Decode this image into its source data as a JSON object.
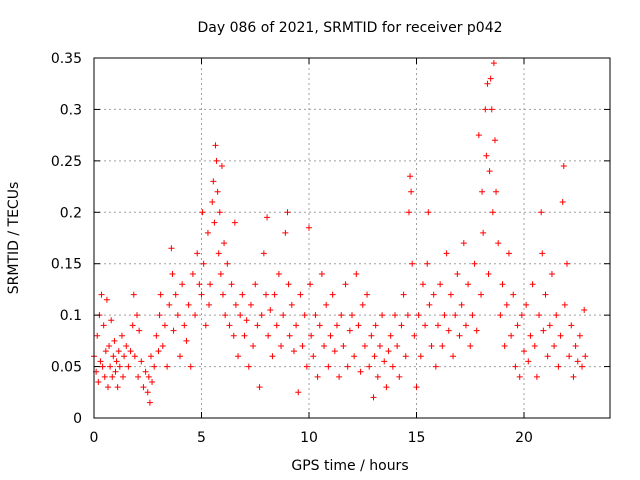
{
  "chart_data": {
    "type": "scatter",
    "title": "Day 086 of 2021, SRMTID for receiver p042",
    "xlabel": "GPS time / hours",
    "ylabel": "SRMTID / TECUs",
    "xlim": [
      0,
      24
    ],
    "ylim": [
      0,
      0.35
    ],
    "xticks": [
      0,
      5,
      10,
      15,
      20
    ],
    "xtick_labels": [
      "0",
      "5",
      "10",
      "15",
      "20"
    ],
    "yticks": [
      0,
      0.05,
      0.1,
      0.15,
      0.2,
      0.25,
      0.3,
      0.35
    ],
    "ytick_labels": [
      "0",
      "0.05",
      "0.1",
      "0.15",
      "0.2",
      "0.25",
      "0.3",
      "0.35"
    ],
    "grid": true,
    "marker": "+",
    "marker_color": "#ff0000",
    "axis_color": "#000000",
    "grid_color": "#a0a0a0",
    "series": [
      {
        "name": "SRMTID",
        "points": [
          [
            0.0,
            0.06
          ],
          [
            0.1,
            0.045
          ],
          [
            0.15,
            0.08
          ],
          [
            0.2,
            0.035
          ],
          [
            0.25,
            0.1
          ],
          [
            0.3,
            0.055
          ],
          [
            0.35,
            0.12
          ],
          [
            0.4,
            0.05
          ],
          [
            0.45,
            0.09
          ],
          [
            0.5,
            0.04
          ],
          [
            0.55,
            0.065
          ],
          [
            0.6,
            0.115
          ],
          [
            0.65,
            0.03
          ],
          [
            0.7,
            0.07
          ],
          [
            0.75,
            0.05
          ],
          [
            0.8,
            0.095
          ],
          [
            0.85,
            0.04
          ],
          [
            0.9,
            0.06
          ],
          [
            0.95,
            0.075
          ],
          [
            1.0,
            0.045
          ],
          [
            1.05,
            0.055
          ],
          [
            1.1,
            0.03
          ],
          [
            1.15,
            0.065
          ],
          [
            1.2,
            0.05
          ],
          [
            1.3,
            0.08
          ],
          [
            1.35,
            0.04
          ],
          [
            1.4,
            0.06
          ],
          [
            1.5,
            0.07
          ],
          [
            1.6,
            0.05
          ],
          [
            1.7,
            0.065
          ],
          [
            1.8,
            0.09
          ],
          [
            1.85,
            0.12
          ],
          [
            1.9,
            0.06
          ],
          [
            2.0,
            0.1
          ],
          [
            2.05,
            0.04
          ],
          [
            2.1,
            0.085
          ],
          [
            2.2,
            0.055
          ],
          [
            2.3,
            0.03
          ],
          [
            2.4,
            0.045
          ],
          [
            2.5,
            0.025
          ],
          [
            2.55,
            0.04
          ],
          [
            2.6,
            0.015
          ],
          [
            2.65,
            0.06
          ],
          [
            2.7,
            0.035
          ],
          [
            2.8,
            0.05
          ],
          [
            2.9,
            0.08
          ],
          [
            3.0,
            0.065
          ],
          [
            3.05,
            0.1
          ],
          [
            3.1,
            0.12
          ],
          [
            3.2,
            0.07
          ],
          [
            3.3,
            0.09
          ],
          [
            3.4,
            0.05
          ],
          [
            3.5,
            0.11
          ],
          [
            3.6,
            0.165
          ],
          [
            3.65,
            0.14
          ],
          [
            3.7,
            0.085
          ],
          [
            3.8,
            0.12
          ],
          [
            3.9,
            0.1
          ],
          [
            4.0,
            0.06
          ],
          [
            4.1,
            0.13
          ],
          [
            4.2,
            0.09
          ],
          [
            4.3,
            0.075
          ],
          [
            4.4,
            0.11
          ],
          [
            4.5,
            0.05
          ],
          [
            4.6,
            0.14
          ],
          [
            4.7,
            0.1
          ],
          [
            4.8,
            0.16
          ],
          [
            4.9,
            0.13
          ],
          [
            5.0,
            0.12
          ],
          [
            5.05,
            0.2
          ],
          [
            5.1,
            0.15
          ],
          [
            5.2,
            0.09
          ],
          [
            5.3,
            0.18
          ],
          [
            5.35,
            0.11
          ],
          [
            5.4,
            0.13
          ],
          [
            5.5,
            0.21
          ],
          [
            5.55,
            0.23
          ],
          [
            5.6,
            0.19
          ],
          [
            5.65,
            0.265
          ],
          [
            5.7,
            0.25
          ],
          [
            5.75,
            0.22
          ],
          [
            5.8,
            0.16
          ],
          [
            5.85,
            0.2
          ],
          [
            5.9,
            0.14
          ],
          [
            5.95,
            0.245
          ],
          [
            6.0,
            0.12
          ],
          [
            6.05,
            0.17
          ],
          [
            6.1,
            0.1
          ],
          [
            6.2,
            0.15
          ],
          [
            6.3,
            0.09
          ],
          [
            6.4,
            0.13
          ],
          [
            6.5,
            0.08
          ],
          [
            6.55,
            0.19
          ],
          [
            6.6,
            0.11
          ],
          [
            6.7,
            0.06
          ],
          [
            6.8,
            0.1
          ],
          [
            6.9,
            0.12
          ],
          [
            7.0,
            0.08
          ],
          [
            7.1,
            0.095
          ],
          [
            7.2,
            0.05
          ],
          [
            7.3,
            0.11
          ],
          [
            7.4,
            0.07
          ],
          [
            7.5,
            0.13
          ],
          [
            7.6,
            0.09
          ],
          [
            7.7,
            0.03
          ],
          [
            7.8,
            0.1
          ],
          [
            7.9,
            0.16
          ],
          [
            8.0,
            0.12
          ],
          [
            8.05,
            0.195
          ],
          [
            8.1,
            0.08
          ],
          [
            8.2,
            0.105
          ],
          [
            8.3,
            0.06
          ],
          [
            8.4,
            0.12
          ],
          [
            8.5,
            0.09
          ],
          [
            8.6,
            0.14
          ],
          [
            8.7,
            0.07
          ],
          [
            8.8,
            0.1
          ],
          [
            8.9,
            0.18
          ],
          [
            9.0,
            0.2
          ],
          [
            9.05,
            0.13
          ],
          [
            9.1,
            0.08
          ],
          [
            9.2,
            0.11
          ],
          [
            9.3,
            0.065
          ],
          [
            9.4,
            0.09
          ],
          [
            9.5,
            0.025
          ],
          [
            9.6,
            0.12
          ],
          [
            9.7,
            0.07
          ],
          [
            9.8,
            0.1
          ],
          [
            9.9,
            0.05
          ],
          [
            10.0,
            0.185
          ],
          [
            10.05,
            0.13
          ],
          [
            10.1,
            0.08
          ],
          [
            10.2,
            0.06
          ],
          [
            10.3,
            0.1
          ],
          [
            10.4,
            0.04
          ],
          [
            10.5,
            0.09
          ],
          [
            10.6,
            0.14
          ],
          [
            10.7,
            0.07
          ],
          [
            10.8,
            0.11
          ],
          [
            10.9,
            0.05
          ],
          [
            11.0,
            0.08
          ],
          [
            11.1,
            0.12
          ],
          [
            11.2,
            0.065
          ],
          [
            11.3,
            0.09
          ],
          [
            11.4,
            0.04
          ],
          [
            11.5,
            0.1
          ],
          [
            11.6,
            0.07
          ],
          [
            11.7,
            0.13
          ],
          [
            11.8,
            0.05
          ],
          [
            11.9,
            0.085
          ],
          [
            12.0,
            0.1
          ],
          [
            12.1,
            0.06
          ],
          [
            12.2,
            0.14
          ],
          [
            12.3,
            0.09
          ],
          [
            12.4,
            0.045
          ],
          [
            12.5,
            0.11
          ],
          [
            12.6,
            0.07
          ],
          [
            12.7,
            0.12
          ],
          [
            12.8,
            0.05
          ],
          [
            12.9,
            0.08
          ],
          [
            13.0,
            0.02
          ],
          [
            13.05,
            0.06
          ],
          [
            13.1,
            0.09
          ],
          [
            13.2,
            0.04
          ],
          [
            13.3,
            0.07
          ],
          [
            13.4,
            0.1
          ],
          [
            13.5,
            0.055
          ],
          [
            13.6,
            0.03
          ],
          [
            13.7,
            0.065
          ],
          [
            13.8,
            0.08
          ],
          [
            13.9,
            0.05
          ],
          [
            14.0,
            0.1
          ],
          [
            14.1,
            0.07
          ],
          [
            14.2,
            0.04
          ],
          [
            14.3,
            0.09
          ],
          [
            14.4,
            0.12
          ],
          [
            14.5,
            0.06
          ],
          [
            14.6,
            0.1
          ],
          [
            14.65,
            0.2
          ],
          [
            14.7,
            0.235
          ],
          [
            14.75,
            0.22
          ],
          [
            14.8,
            0.15
          ],
          [
            14.9,
            0.08
          ],
          [
            15.0,
            0.03
          ],
          [
            15.1,
            0.1
          ],
          [
            15.2,
            0.06
          ],
          [
            15.3,
            0.13
          ],
          [
            15.4,
            0.09
          ],
          [
            15.5,
            0.15
          ],
          [
            15.55,
            0.2
          ],
          [
            15.6,
            0.11
          ],
          [
            15.7,
            0.07
          ],
          [
            15.8,
            0.12
          ],
          [
            15.9,
            0.05
          ],
          [
            16.0,
            0.09
          ],
          [
            16.1,
            0.13
          ],
          [
            16.2,
            0.07
          ],
          [
            16.3,
            0.1
          ],
          [
            16.4,
            0.16
          ],
          [
            16.5,
            0.085
          ],
          [
            16.6,
            0.12
          ],
          [
            16.7,
            0.06
          ],
          [
            16.8,
            0.1
          ],
          [
            16.9,
            0.14
          ],
          [
            17.0,
            0.08
          ],
          [
            17.1,
            0.11
          ],
          [
            17.2,
            0.17
          ],
          [
            17.3,
            0.09
          ],
          [
            17.4,
            0.13
          ],
          [
            17.5,
            0.07
          ],
          [
            17.6,
            0.1
          ],
          [
            17.7,
            0.15
          ],
          [
            17.8,
            0.085
          ],
          [
            17.9,
            0.275
          ],
          [
            18.0,
            0.12
          ],
          [
            18.05,
            0.22
          ],
          [
            18.1,
            0.18
          ],
          [
            18.2,
            0.3
          ],
          [
            18.25,
            0.255
          ],
          [
            18.3,
            0.325
          ],
          [
            18.35,
            0.14
          ],
          [
            18.4,
            0.24
          ],
          [
            18.45,
            0.33
          ],
          [
            18.5,
            0.3
          ],
          [
            18.55,
            0.2
          ],
          [
            18.6,
            0.345
          ],
          [
            18.65,
            0.27
          ],
          [
            18.7,
            0.22
          ],
          [
            18.8,
            0.17
          ],
          [
            18.9,
            0.1
          ],
          [
            19.0,
            0.13
          ],
          [
            19.1,
            0.07
          ],
          [
            19.2,
            0.11
          ],
          [
            19.3,
            0.16
          ],
          [
            19.4,
            0.08
          ],
          [
            19.5,
            0.12
          ],
          [
            19.6,
            0.05
          ],
          [
            19.7,
            0.09
          ],
          [
            19.8,
            0.04
          ],
          [
            19.9,
            0.1
          ],
          [
            20.0,
            0.065
          ],
          [
            20.1,
            0.11
          ],
          [
            20.2,
            0.055
          ],
          [
            20.3,
            0.08
          ],
          [
            20.4,
            0.13
          ],
          [
            20.5,
            0.07
          ],
          [
            20.6,
            0.04
          ],
          [
            20.7,
            0.1
          ],
          [
            20.8,
            0.2
          ],
          [
            20.85,
            0.16
          ],
          [
            20.9,
            0.085
          ],
          [
            21.0,
            0.12
          ],
          [
            21.1,
            0.06
          ],
          [
            21.2,
            0.09
          ],
          [
            21.3,
            0.14
          ],
          [
            21.4,
            0.07
          ],
          [
            21.5,
            0.1
          ],
          [
            21.6,
            0.05
          ],
          [
            21.7,
            0.08
          ],
          [
            21.8,
            0.21
          ],
          [
            21.85,
            0.245
          ],
          [
            21.9,
            0.11
          ],
          [
            22.0,
            0.15
          ],
          [
            22.1,
            0.06
          ],
          [
            22.2,
            0.09
          ],
          [
            22.3,
            0.04
          ],
          [
            22.4,
            0.07
          ],
          [
            22.5,
            0.055
          ],
          [
            22.6,
            0.08
          ],
          [
            22.7,
            0.05
          ],
          [
            22.8,
            0.105
          ],
          [
            22.85,
            0.06
          ]
        ]
      }
    ]
  }
}
